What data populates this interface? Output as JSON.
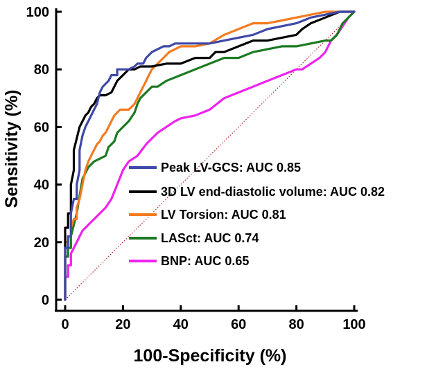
{
  "chart_data": {
    "type": "line",
    "title": "",
    "xlabel": "100-Specificity (%)",
    "ylabel": "Sensitivity (%)",
    "xlim": [
      0,
      100
    ],
    "ylim": [
      0,
      100
    ],
    "xticks": [
      "0",
      "20",
      "40",
      "60",
      "80",
      "100"
    ],
    "yticks": [
      "0",
      "20",
      "40",
      "60",
      "80",
      "100"
    ],
    "reference_line": {
      "name": "Chance (diagonal)",
      "color": "#b22222",
      "style": "dotted",
      "x": [
        0,
        100
      ],
      "y": [
        0,
        100
      ]
    },
    "legend_position": "center-right",
    "series": [
      {
        "name": "Peak LV-GCS: AUC 0.85",
        "color": "#3f48a8",
        "x": [
          0,
          0,
          1,
          1,
          2,
          2,
          3,
          4,
          4,
          5,
          5,
          6,
          7,
          8,
          9,
          10,
          11,
          12,
          13,
          15,
          16,
          18,
          18,
          20,
          22,
          24,
          25,
          27,
          28,
          30,
          32,
          34,
          36,
          38,
          40,
          42,
          45,
          50,
          55,
          60,
          65,
          70,
          75,
          80,
          85,
          90,
          95,
          100
        ],
        "y": [
          0,
          18,
          18,
          22,
          22,
          30,
          35,
          35,
          40,
          45,
          52,
          57,
          60,
          62,
          64,
          66,
          68,
          72,
          74,
          76,
          78,
          78,
          80,
          80,
          80,
          81,
          82,
          82,
          84,
          86,
          87,
          88,
          88,
          89,
          89,
          89,
          89,
          89,
          90,
          91,
          92,
          94,
          95,
          96,
          98,
          99,
          100,
          100
        ]
      },
      {
        "name": "3D LV end-diastolic volume: AUC 0.82",
        "color": "#000000",
        "x": [
          0,
          0,
          1,
          1,
          2,
          2,
          3,
          3,
          4,
          5,
          6,
          7,
          8,
          9,
          10,
          11,
          12,
          14,
          16,
          17,
          18,
          20,
          21,
          22,
          24,
          26,
          28,
          30,
          35,
          40,
          45,
          50,
          52,
          55,
          60,
          65,
          70,
          75,
          80,
          82,
          85,
          90,
          95,
          100
        ],
        "y": [
          0,
          25,
          25,
          30,
          30,
          40,
          45,
          52,
          56,
          60,
          62,
          64,
          65,
          67,
          68,
          70,
          71,
          71,
          72,
          74,
          76,
          78,
          79,
          80,
          80,
          81,
          81,
          81,
          82,
          82,
          84,
          84,
          86,
          86,
          88,
          90,
          90,
          91,
          92,
          94,
          96,
          98,
          100,
          100
        ]
      },
      {
        "name": "LV Torsion: AUC 0.81",
        "color": "#f37b21",
        "x": [
          0,
          0,
          1,
          1,
          2,
          2,
          3,
          4,
          4,
          5,
          6,
          7,
          8,
          9,
          10,
          11,
          12,
          13,
          14,
          15,
          16,
          17,
          18,
          19,
          20,
          22,
          24,
          25,
          26,
          27,
          28,
          29,
          30,
          32,
          34,
          36,
          38,
          40,
          45,
          50,
          55,
          60,
          65,
          70,
          75,
          80,
          85,
          90,
          95,
          100
        ],
        "y": [
          0,
          20,
          20,
          22,
          22,
          25,
          28,
          28,
          32,
          35,
          40,
          45,
          48,
          50,
          52,
          54,
          55,
          57,
          58,
          60,
          62,
          64,
          65,
          66,
          66,
          66,
          68,
          70,
          72,
          74,
          76,
          78,
          80,
          82,
          84,
          86,
          87,
          88,
          88,
          89,
          92,
          94,
          96,
          96,
          97,
          98,
          99,
          100,
          100,
          100
        ]
      },
      {
        "name": "LASct: AUC 0.74",
        "color": "#1b7a20",
        "x": [
          0,
          0,
          1,
          1,
          2,
          2,
          3,
          4,
          5,
          6,
          8,
          10,
          12,
          14,
          15,
          17,
          18,
          20,
          22,
          24,
          25,
          26,
          28,
          30,
          32,
          35,
          40,
          45,
          50,
          55,
          60,
          65,
          70,
          75,
          80,
          85,
          90,
          92,
          94,
          96,
          98,
          100
        ],
        "y": [
          0,
          15,
          15,
          18,
          18,
          22,
          26,
          30,
          36,
          42,
          46,
          48,
          49,
          50,
          53,
          55,
          58,
          60,
          62,
          65,
          68,
          70,
          72,
          74,
          74,
          76,
          78,
          80,
          82,
          84,
          84,
          86,
          87,
          88,
          88,
          89,
          90,
          90,
          92,
          96,
          98,
          100
        ]
      },
      {
        "name": "BNP: AUC 0.65",
        "color": "#ee22ee",
        "x": [
          0,
          0,
          1,
          1,
          2,
          2,
          3,
          4,
          5,
          6,
          8,
          10,
          12,
          14,
          16,
          18,
          20,
          22,
          25,
          28,
          30,
          32,
          35,
          38,
          40,
          45,
          50,
          55,
          60,
          65,
          70,
          75,
          80,
          82,
          85,
          88,
          90,
          92,
          94,
          96,
          98,
          100
        ],
        "y": [
          0,
          8,
          8,
          12,
          12,
          16,
          18,
          20,
          22,
          24,
          26,
          28,
          30,
          32,
          35,
          40,
          45,
          48,
          50,
          54,
          56,
          58,
          60,
          62,
          63,
          64,
          66,
          70,
          72,
          74,
          76,
          78,
          80,
          80,
          82,
          84,
          86,
          90,
          92,
          95,
          98,
          100
        ]
      }
    ]
  }
}
